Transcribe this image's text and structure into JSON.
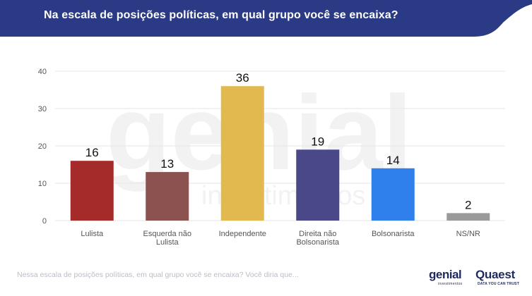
{
  "header": {
    "title": "Na escala de posições políticas, em qual grupo você se encaixa?"
  },
  "colors": {
    "header_bg": "#2b3a84",
    "axis_text": "#555555",
    "gridline": "#e6e6e6"
  },
  "chart_data": {
    "type": "bar",
    "title": "Na escala de posições políticas, em qual grupo você se encaixa?",
    "categories": [
      "Lulista",
      "Esquerda não Lulista",
      "Independente",
      "Direita não Bolsonarista",
      "Bolsonarista",
      "NS/NR"
    ],
    "category_lines": [
      [
        "Lulista"
      ],
      [
        "Esquerda não",
        "Lulista"
      ],
      [
        "Independente"
      ],
      [
        "Direita não",
        "Bolsonarista"
      ],
      [
        "Bolsonarista"
      ],
      [
        "NS/NR"
      ]
    ],
    "values": [
      16,
      13,
      36,
      19,
      14,
      2
    ],
    "colors": [
      "#a52a2a",
      "#8b5250",
      "#e1b94f",
      "#4a4888",
      "#2f80ed",
      "#9a9a9a"
    ],
    "yticks": [
      0,
      10,
      20,
      30,
      40
    ],
    "ylim": [
      0,
      40
    ],
    "xlabel": "",
    "ylabel": "",
    "grid": true,
    "legend": "none",
    "data_labels": true
  },
  "footer": {
    "note": "Nessa escala de posições políticas, em qual grupo você se encaixa? Você diria que...",
    "logo_genial": "genial",
    "logo_genial_sub": "investimentos",
    "logo_quaest": "Quaest",
    "logo_quaest_sub": "DATA YOU CAN TRUST"
  },
  "watermark": {
    "text": "genial",
    "subtext": "investimentos"
  }
}
